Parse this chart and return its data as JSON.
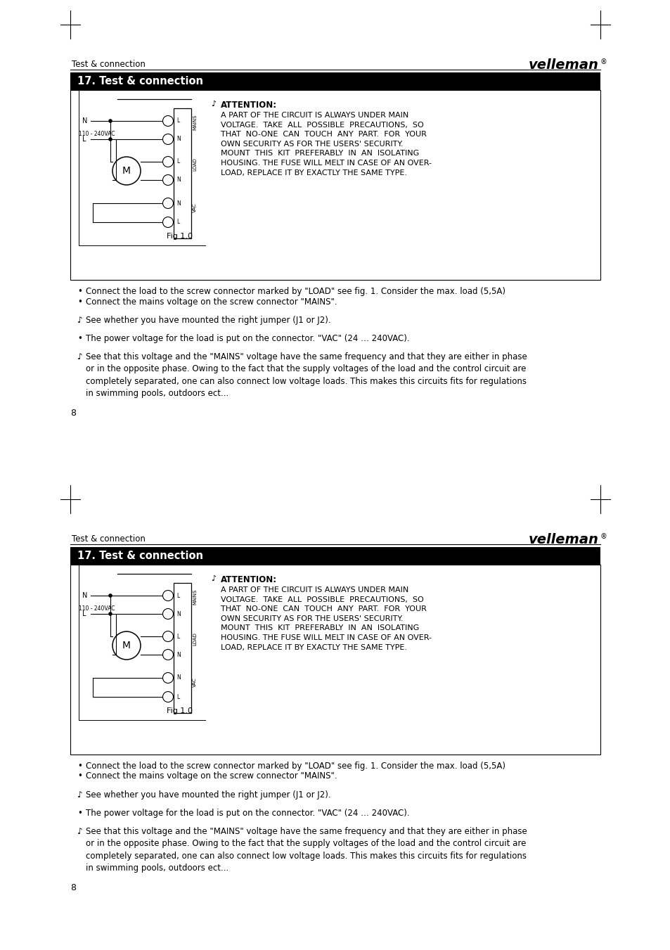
{
  "page_bg": "#ffffff",
  "header_text": "Test & connection",
  "section_title": "17. Test & connection",
  "attention_label": "ATTENTION:",
  "attention_text": "A PART OF THE CIRCUIT IS ALWAYS UNDER MAIN\nVOLTAGE.  TAKE  ALL  POSSIBLE  PRECAUTIONS,  SO\nTHAT  NO-ONE  CAN  TOUCH  ANY  PART.  FOR  YOUR\nOWN SECURITY AS FOR THE USERS' SECURITY.\nMOUNT  THIS  KIT  PREFERABLY  IN  AN  ISOLATING\nHOUSING. THE FUSE WILL MELT IN CASE OF AN OVER-\nLOAD, REPLACE IT BY EXACTLY THE SAME TYPE.",
  "fig_label": "Fig 1.0",
  "bullet1": "Connect the load to the screw connector marked by \"LOAD\" see fig. 1. Consider the max. load (5,5A)",
  "bullet2": "Connect the mains voltage on the screw connector \"MAINS\".",
  "note1": "See whether you have mounted the right jumper (J1 or J2).",
  "bullet3": "The power voltage for the load is put on the connector. \"VAC\" (24 … 240VAC).",
  "note2_line1": "See that this voltage and the \"MAINS\" voltage have the same frequency and that they are either in phase",
  "note2_line2": "or in the opposite phase. Owing to the fact that the supply voltages of the load and the control circuit are",
  "note2_line3": "completely separated, one can also connect low voltage loads. This makes this circuits fits for regulations",
  "note2_line4": "in swimming pools, outdoors ect...",
  "page_number": "8"
}
